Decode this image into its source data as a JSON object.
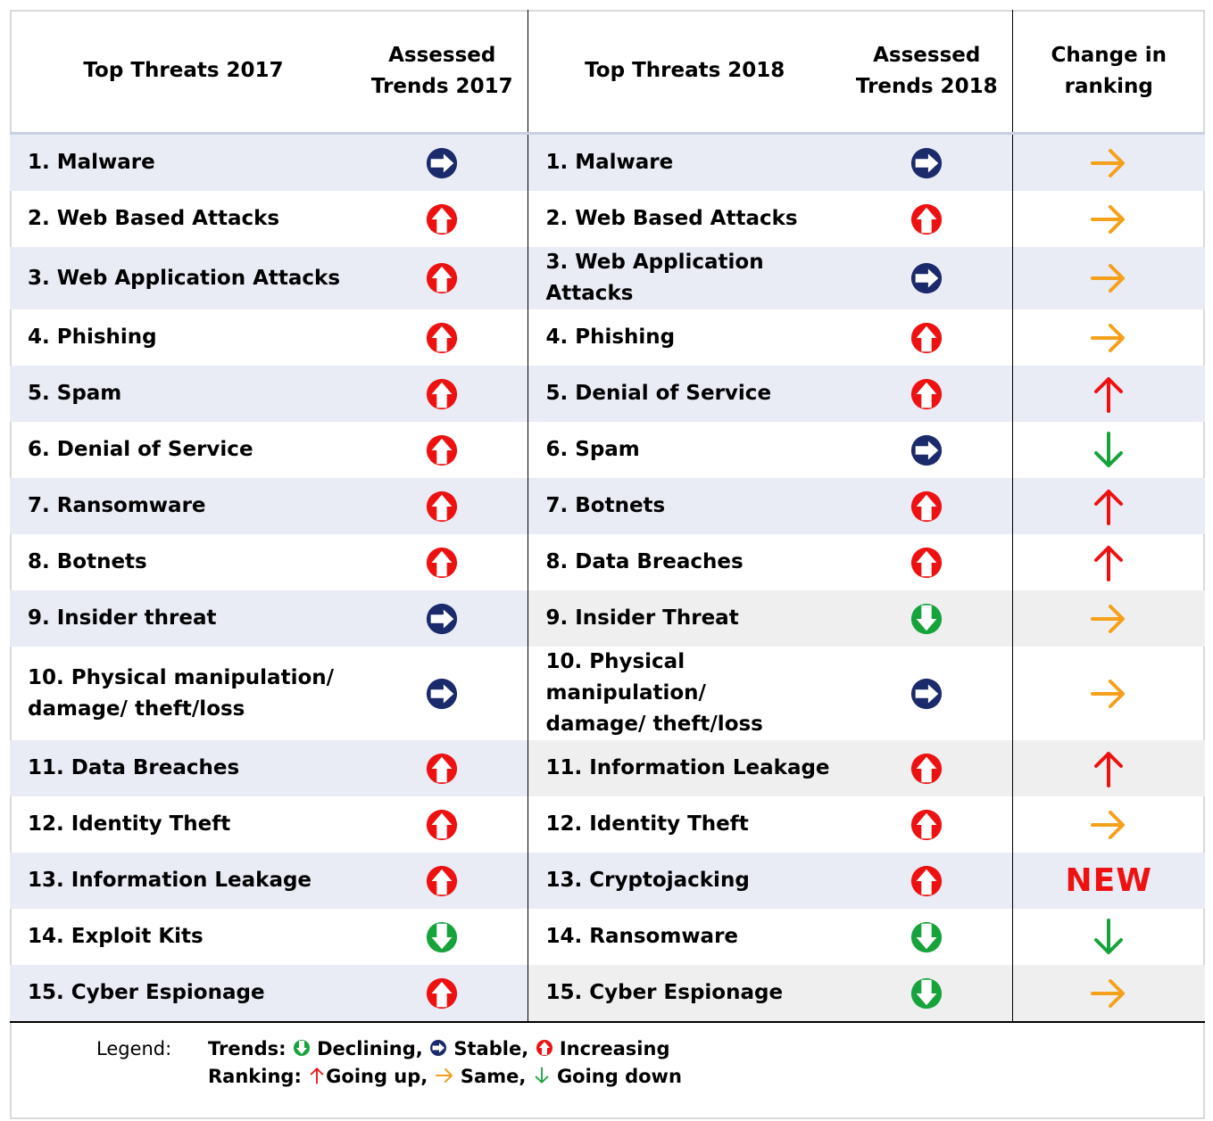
{
  "header": {
    "col1": "Top Threats 2017",
    "col2_line1": "Assessed",
    "col2_line2": "Trends 2017",
    "col3": "Top Threats 2018",
    "col4_line1": "Assessed",
    "col4_line2": "Trends 2018",
    "col5_line1": "Change in",
    "col5_line2": "ranking"
  },
  "rows": [
    {
      "t2017": "1. Malware",
      "tr2017": "stable-icon",
      "t2018": "1. Malware",
      "tr2018": "stable-icon",
      "change": "same-arrow-icon"
    },
    {
      "t2017": "2. Web Based Attacks",
      "tr2017": "increasing-icon",
      "t2018": "2. Web Based Attacks",
      "tr2018": "increasing-icon",
      "change": "same-arrow-icon"
    },
    {
      "t2017": "3. Web Application Attacks",
      "tr2017": "increasing-icon",
      "t2018": "3. Web Application Attacks",
      "tr2018": "stable-icon",
      "change": "same-arrow-icon"
    },
    {
      "t2017": "4. Phishing",
      "tr2017": "increasing-icon",
      "t2018": "4. Phishing",
      "tr2018": "increasing-icon",
      "change": "same-arrow-icon"
    },
    {
      "t2017": "5. Spam",
      "tr2017": "increasing-icon",
      "t2018": "5. Denial of Service",
      "tr2018": "increasing-icon",
      "change": "up-arrow-icon"
    },
    {
      "t2017": "6. Denial of Service",
      "tr2017": "increasing-icon",
      "t2018": "6. Spam",
      "tr2018": "stable-icon",
      "change": "down-arrow-icon"
    },
    {
      "t2017": "7. Ransomware",
      "tr2017": "increasing-icon",
      "t2018": "7. Botnets",
      "tr2018": "increasing-icon",
      "change": "up-arrow-icon"
    },
    {
      "t2017": "8. Botnets",
      "tr2017": "increasing-icon",
      "t2018": "8. Data Breaches",
      "tr2018": "increasing-icon",
      "change": "up-arrow-icon"
    },
    {
      "t2017": "9. Insider threat",
      "tr2017": "stable-icon",
      "t2018": "9. Insider Threat",
      "tr2018": "declining-icon",
      "change": "same-arrow-icon"
    },
    {
      "t2017_l1": "10. Physical manipulation/",
      "t2017_l2": "damage/ theft/loss",
      "tr2017": "stable-icon",
      "t2018_l1": "10. Physical manipulation/",
      "t2018_l2": "damage/ theft/loss",
      "tr2018": "stable-icon",
      "change": "same-arrow-icon"
    },
    {
      "t2017": "11. Data Breaches",
      "tr2017": "increasing-icon",
      "t2018": "11. Information Leakage",
      "tr2018": "increasing-icon",
      "change": "up-arrow-icon"
    },
    {
      "t2017": "12. Identity Theft",
      "tr2017": "increasing-icon",
      "t2018": "12. Identity Theft",
      "tr2018": "increasing-icon",
      "change": "same-arrow-icon"
    },
    {
      "t2017": "13. Information Leakage",
      "tr2017": "increasing-icon",
      "t2018": "13. Cryptojacking",
      "tr2018": "increasing-icon",
      "change_text": "NEW"
    },
    {
      "t2017": "14. Exploit Kits",
      "tr2017": "declining-icon",
      "t2018": "14. Ransomware",
      "tr2018": "declining-icon",
      "change": "down-arrow-icon"
    },
    {
      "t2017": "15. Cyber Espionage",
      "tr2017": "increasing-icon",
      "t2018": "15. Cyber Espionage",
      "tr2018": "declining-icon",
      "change": "same-arrow-icon"
    }
  ],
  "legend": {
    "label": "Legend:",
    "trends_label": "Trends:",
    "declining": "Declining,",
    "stable": "Stable,",
    "increasing": "Increasing",
    "ranking_label": "Ranking:",
    "going_up": "Going up,",
    "same": "Same,",
    "going_down": "Going down"
  },
  "colors": {
    "stable": "#1b2a6b",
    "increasing": "#ee1111",
    "declining": "#17a33c",
    "same_arrow": "#f5a01a",
    "up_arrow": "#ee1111",
    "down_arrow": "#17a33c",
    "alt_row": "#e9ebf5"
  }
}
